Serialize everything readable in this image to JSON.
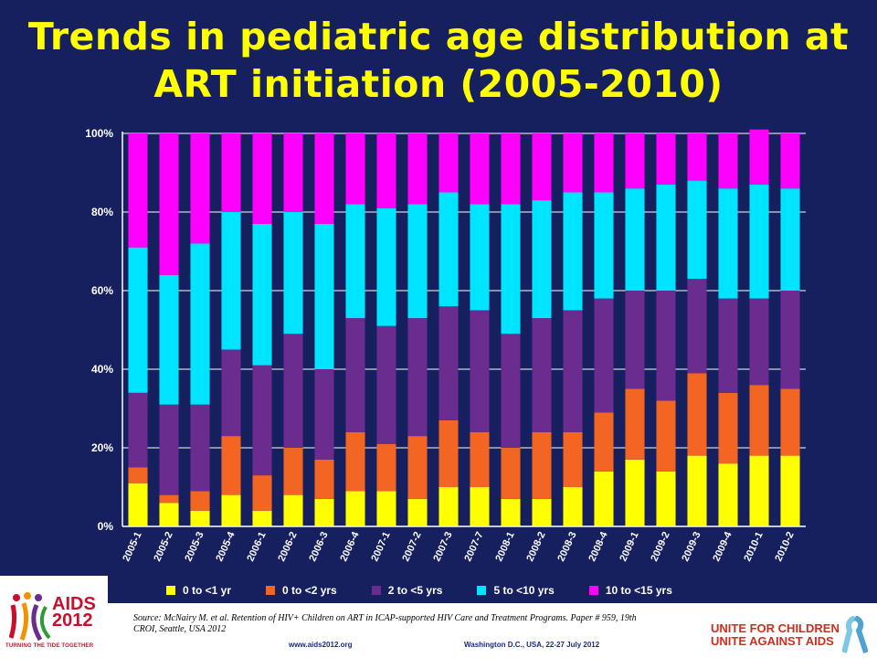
{
  "title": "Trends in pediatric age distribution at ART initiation (2005-2010)",
  "chart_data": {
    "type": "bar",
    "stacked": true,
    "title": "Trends in pediatric age distribution at ART initiation (2005-2010)",
    "xlabel": "",
    "ylabel": "",
    "ylim": [
      0,
      100
    ],
    "y_ticks": [
      "0%",
      "20%",
      "40%",
      "60%",
      "80%",
      "100%"
    ],
    "grid": true,
    "legend_position": "bottom",
    "categories": [
      "2005-1",
      "2005-2",
      "2005-3",
      "2005-4",
      "2006-1",
      "2006-2",
      "2006-3",
      "2006-4",
      "2007-1",
      "2007-2",
      "2007-3",
      "2007-7",
      "2008-1",
      "2008-2",
      "2008-3",
      "2008-4",
      "2009-1",
      "2009-2",
      "2009-3",
      "2009-4",
      "2010-1",
      "2010-2"
    ],
    "series": [
      {
        "name": "0 to <1 yr",
        "color": "#ffff00",
        "values": [
          11,
          6,
          4,
          8,
          4,
          8,
          7,
          9,
          9,
          7,
          10,
          10,
          7,
          7,
          10,
          14,
          17,
          14,
          18,
          16,
          18,
          18
        ]
      },
      {
        "name": "0 to <2 yrs",
        "color": "#f26522",
        "values": [
          4,
          2,
          5,
          15,
          9,
          12,
          10,
          15,
          12,
          16,
          17,
          14,
          13,
          17,
          14,
          15,
          18,
          18,
          21,
          18,
          18,
          17
        ]
      },
      {
        "name": "2 to <5 yrs",
        "color": "#6a2c8e",
        "values": [
          19,
          23,
          22,
          22,
          28,
          29,
          23,
          29,
          30,
          30,
          29,
          31,
          29,
          29,
          31,
          29,
          25,
          28,
          24,
          24,
          22,
          25
        ]
      },
      {
        "name": "5 to <10 yrs",
        "color": "#00e5ff",
        "values": [
          37,
          33,
          41,
          35,
          36,
          31,
          37,
          29,
          30,
          29,
          29,
          27,
          33,
          30,
          30,
          27,
          26,
          27,
          25,
          28,
          29,
          26
        ]
      },
      {
        "name": "10 to <15 yrs",
        "color": "#ff00ff",
        "values": [
          29,
          36,
          28,
          20,
          23,
          20,
          23,
          18,
          19,
          18,
          15,
          18,
          18,
          17,
          15,
          15,
          14,
          13,
          12,
          14,
          14,
          14
        ]
      }
    ]
  },
  "footer": {
    "source": "Source: McNairy M. et al. Retention of HIV+ Children on ART in ICAP-supported HIV Care and Treatment Programs. Paper # 959, 19th CROI, Seattle, USA 2012",
    "website": "www.aids2012.org",
    "conference": "Washington D.C., USA, 22-27 July 2012",
    "logo_left": {
      "line1": "AIDS",
      "line2": "2012",
      "tagline": "TURNING THE TIDE TOGETHER"
    },
    "logo_right": {
      "line1": "UNITE FOR CHILDREN",
      "line2": "UNITE AGAINST AIDS"
    }
  },
  "colors": {
    "background": "#16205e",
    "title": "#ffff00",
    "logo_red": "#c8102e"
  }
}
